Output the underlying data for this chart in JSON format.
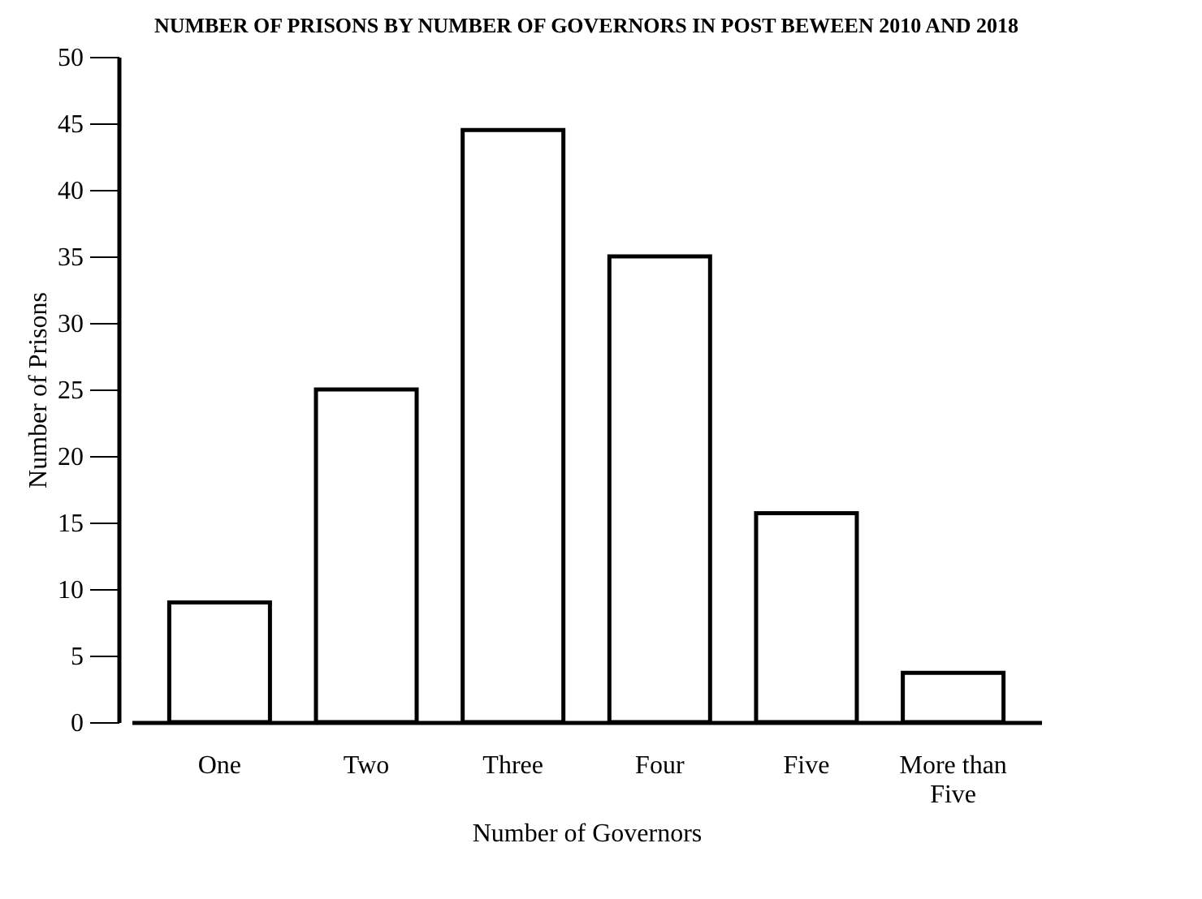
{
  "chart_data": {
    "type": "bar",
    "title": "NUMBER OF PRISONS BY NUMBER OF GOVERNORS IN POST BEWEEN 2010 AND 2018",
    "xlabel": "Number of Governors",
    "ylabel": "Number of Prisons",
    "categories": [
      "One",
      "Two",
      "Three",
      "Four",
      "Five",
      "More than Five"
    ],
    "values": [
      9,
      25,
      44.5,
      35,
      15.7,
      3.7
    ],
    "color": "#ffffff",
    "ylim": [
      0,
      50
    ],
    "yticks": [
      0,
      5,
      10,
      15,
      20,
      25,
      30,
      35,
      40,
      45,
      50
    ],
    "grid": false
  }
}
